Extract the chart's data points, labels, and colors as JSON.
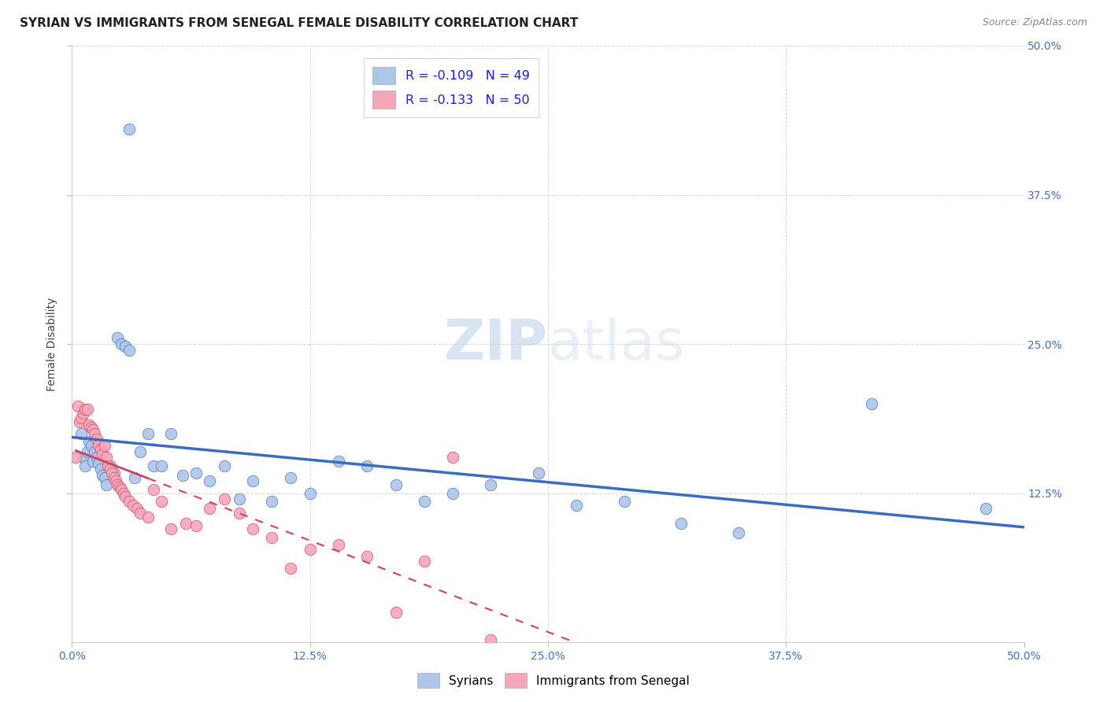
{
  "title": "SYRIAN VS IMMIGRANTS FROM SENEGAL FEMALE DISABILITY CORRELATION CHART",
  "source": "Source: ZipAtlas.com",
  "ylabel": "Female Disability",
  "xlim": [
    0.0,
    0.5
  ],
  "ylim": [
    0.0,
    0.5
  ],
  "xtick_vals": [
    0.0,
    0.125,
    0.25,
    0.375,
    0.5
  ],
  "xtick_labels": [
    "0.0%",
    "12.5%",
    "25.0%",
    "37.5%",
    "50.0%"
  ],
  "ytick_vals": [
    0.125,
    0.25,
    0.375,
    0.5
  ],
  "ytick_labels": [
    "12.5%",
    "25.0%",
    "37.5%",
    "50.0%"
  ],
  "legend_labels": [
    "Syrians",
    "Immigrants from Senegal"
  ],
  "syrians_R": "-0.109",
  "syrians_N": "49",
  "senegal_R": "-0.133",
  "senegal_N": "50",
  "syrians_color": "#aec6e8",
  "senegal_color": "#f4a7b9",
  "syrians_line_color": "#3a6cbf",
  "senegal_line_color": "#d44060",
  "background_color": "#ffffff",
  "grid_color": "#cccccc",
  "syrians_x": [
    0.03,
    0.005,
    0.006,
    0.007,
    0.008,
    0.009,
    0.01,
    0.011,
    0.012,
    0.013,
    0.014,
    0.015,
    0.016,
    0.017,
    0.018,
    0.02,
    0.022,
    0.024,
    0.026,
    0.028,
    0.03,
    0.033,
    0.036,
    0.04,
    0.043,
    0.047,
    0.052,
    0.058,
    0.065,
    0.072,
    0.08,
    0.088,
    0.095,
    0.105,
    0.115,
    0.125,
    0.14,
    0.155,
    0.17,
    0.185,
    0.2,
    0.22,
    0.245,
    0.265,
    0.29,
    0.32,
    0.35,
    0.42,
    0.48
  ],
  "syrians_y": [
    0.43,
    0.175,
    0.155,
    0.148,
    0.16,
    0.168,
    0.165,
    0.152,
    0.16,
    0.155,
    0.15,
    0.145,
    0.14,
    0.138,
    0.132,
    0.148,
    0.142,
    0.255,
    0.25,
    0.248,
    0.245,
    0.138,
    0.16,
    0.175,
    0.148,
    0.148,
    0.175,
    0.14,
    0.142,
    0.135,
    0.148,
    0.12,
    0.135,
    0.118,
    0.138,
    0.125,
    0.152,
    0.148,
    0.132,
    0.118,
    0.125,
    0.132,
    0.142,
    0.115,
    0.118,
    0.1,
    0.092,
    0.2,
    0.112
  ],
  "senegal_x": [
    0.002,
    0.003,
    0.004,
    0.005,
    0.006,
    0.007,
    0.008,
    0.009,
    0.01,
    0.011,
    0.012,
    0.013,
    0.014,
    0.015,
    0.016,
    0.017,
    0.018,
    0.019,
    0.02,
    0.021,
    0.022,
    0.023,
    0.024,
    0.025,
    0.026,
    0.027,
    0.028,
    0.03,
    0.032,
    0.034,
    0.036,
    0.04,
    0.043,
    0.047,
    0.052,
    0.06,
    0.065,
    0.072,
    0.08,
    0.088,
    0.095,
    0.105,
    0.115,
    0.125,
    0.14,
    0.155,
    0.17,
    0.185,
    0.2,
    0.22
  ],
  "senegal_y": [
    0.155,
    0.198,
    0.185,
    0.188,
    0.192,
    0.195,
    0.195,
    0.182,
    0.18,
    0.178,
    0.175,
    0.17,
    0.165,
    0.162,
    0.158,
    0.165,
    0.155,
    0.148,
    0.145,
    0.142,
    0.138,
    0.135,
    0.132,
    0.13,
    0.128,
    0.125,
    0.122,
    0.118,
    0.115,
    0.112,
    0.108,
    0.105,
    0.128,
    0.118,
    0.095,
    0.1,
    0.098,
    0.112,
    0.12,
    0.108,
    0.095,
    0.088,
    0.062,
    0.078,
    0.082,
    0.072,
    0.025,
    0.068,
    0.155,
    0.002
  ]
}
